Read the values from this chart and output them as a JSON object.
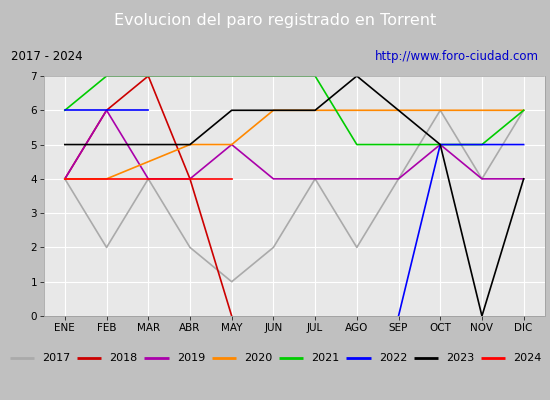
{
  "title": "Evolucion del paro registrado en Torrent",
  "subtitle_left": "2017 - 2024",
  "subtitle_right": "http://www.foro-ciudad.com",
  "months": [
    "ENE",
    "FEB",
    "MAR",
    "ABR",
    "MAY",
    "JUN",
    "JUL",
    "AGO",
    "SEP",
    "OCT",
    "NOV",
    "DIC"
  ],
  "ylim": [
    0.0,
    7.0
  ],
  "yticks": [
    0.0,
    1.0,
    2.0,
    3.0,
    4.0,
    5.0,
    6.0,
    7.0
  ],
  "series": {
    "2017": {
      "color": "#aaaaaa",
      "values": [
        4.0,
        2.0,
        4.0,
        2.0,
        1.0,
        2.0,
        4.0,
        2.0,
        4.0,
        6.0,
        4.0,
        6.0
      ]
    },
    "2018": {
      "color": "#cc0000",
      "values": [
        4.0,
        6.0,
        7.0,
        4.0,
        0.0,
        null,
        null,
        null,
        null,
        null,
        null,
        null
      ]
    },
    "2019": {
      "color": "#aa00aa",
      "values": [
        4.0,
        6.0,
        4.0,
        4.0,
        5.0,
        4.0,
        4.0,
        4.0,
        4.0,
        5.0,
        4.0,
        4.0
      ]
    },
    "2020": {
      "color": "#ff8800",
      "values": [
        4.0,
        4.0,
        4.5,
        5.0,
        5.0,
        6.0,
        6.0,
        6.0,
        6.0,
        6.0,
        6.0,
        6.0
      ]
    },
    "2021": {
      "color": "#00cc00",
      "values": [
        6.0,
        7.0,
        7.0,
        7.0,
        7.0,
        7.0,
        7.0,
        5.0,
        5.0,
        5.0,
        5.0,
        6.0
      ]
    },
    "2022": {
      "color": "#0000ff",
      "values": [
        6.0,
        6.0,
        6.0,
        null,
        null,
        null,
        null,
        null,
        0.0,
        5.0,
        5.0,
        5.0
      ]
    },
    "2023": {
      "color": "#000000",
      "values": [
        5.0,
        5.0,
        5.0,
        5.0,
        6.0,
        6.0,
        6.0,
        7.0,
        6.0,
        5.0,
        0.0,
        4.0
      ]
    },
    "2024": {
      "color": "#ff0000",
      "values": [
        4.0,
        4.0,
        4.0,
        4.0,
        4.0,
        null,
        null,
        null,
        null,
        null,
        null,
        null
      ]
    }
  },
  "legend_order": [
    "2017",
    "2018",
    "2019",
    "2020",
    "2021",
    "2022",
    "2023",
    "2024"
  ],
  "title_bg": "#4472c4",
  "title_color": "#ffffff",
  "subtitle_bg": "#e0e0e0",
  "plot_bg": "#e8e8e8",
  "grid_color": "#ffffff"
}
